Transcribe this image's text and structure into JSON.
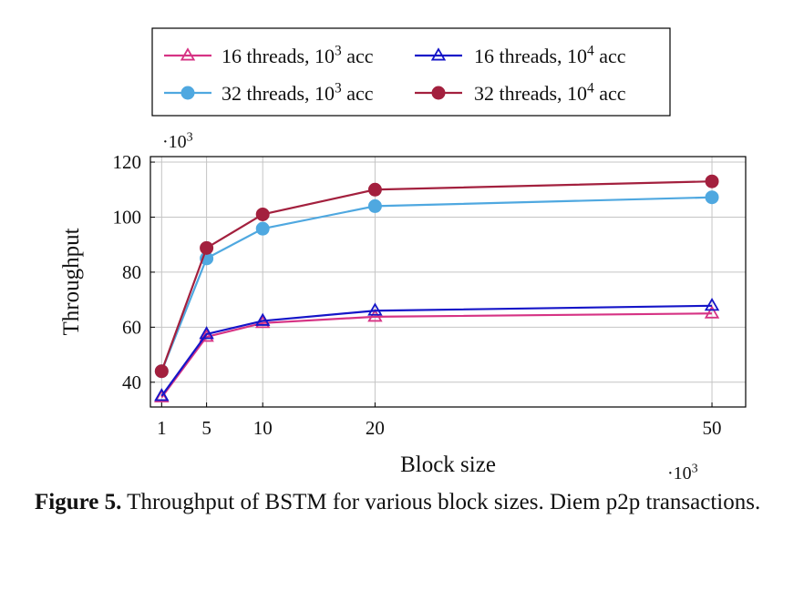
{
  "chart_data": {
    "type": "line",
    "xlabel": "Block size",
    "ylabel": "Throughput",
    "x_multiplier": "·10",
    "x_multiplier_exp": "3",
    "y_multiplier": "·10",
    "y_multiplier_exp": "3",
    "x": [
      1,
      5,
      10,
      20,
      50
    ],
    "xticks": [
      "1",
      "5",
      "10",
      "20",
      "50"
    ],
    "yticks": [
      40,
      60,
      80,
      100,
      120
    ],
    "ylim": [
      31,
      122
    ],
    "grid": true,
    "legend_placement": "top",
    "series": [
      {
        "name": "16 threads, 10³ acc",
        "name_base": "16 threads, 10",
        "name_exp": "3",
        "name_suffix": " acc",
        "marker": "triangle",
        "color": "#d63384",
        "values": [
          34.5,
          56.5,
          61.5,
          63.8,
          65
        ]
      },
      {
        "name": "16 threads, 10⁴ acc",
        "name_base": "16 threads, 10",
        "name_exp": "4",
        "name_suffix": " acc",
        "marker": "triangle",
        "color": "#1515c8",
        "values": [
          35,
          57.5,
          62.3,
          66,
          67.8
        ]
      },
      {
        "name": "32 threads, 10³ acc",
        "name_base": "32 threads, 10",
        "name_exp": "3",
        "name_suffix": " acc",
        "marker": "circle",
        "color": "#4fa8e0",
        "values": [
          44,
          85,
          95.8,
          104,
          107.2
        ]
      },
      {
        "name": "32 threads, 10⁴ acc",
        "name_base": "32 threads, 10",
        "name_exp": "4",
        "name_suffix": " acc",
        "marker": "circle",
        "color": "#a3203e",
        "values": [
          44,
          88.8,
          101,
          110,
          113
        ]
      }
    ]
  },
  "caption": {
    "label": "Figure 5.",
    "text": " Throughput of BSTM for various block sizes. Diem p2p transactions."
  }
}
